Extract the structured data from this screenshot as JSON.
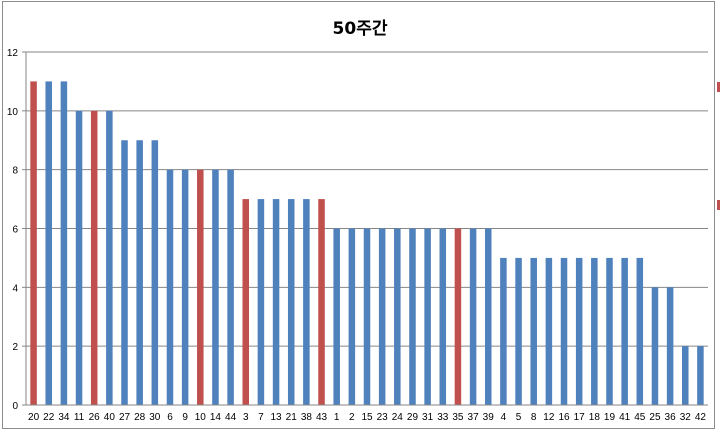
{
  "chart_data": {
    "type": "bar",
    "title": "50주간",
    "xlabel": "",
    "ylabel": "",
    "ylim": [
      0,
      12
    ],
    "yticks": [
      0,
      2,
      4,
      6,
      8,
      10,
      12
    ],
    "grid": true,
    "legend": "none",
    "categories": [
      "20",
      "22",
      "34",
      "11",
      "26",
      "40",
      "27",
      "28",
      "30",
      "6",
      "9",
      "10",
      "14",
      "44",
      "3",
      "7",
      "13",
      "21",
      "38",
      "43",
      "1",
      "2",
      "15",
      "23",
      "24",
      "29",
      "31",
      "33",
      "35",
      "37",
      "39",
      "4",
      "5",
      "8",
      "12",
      "16",
      "17",
      "18",
      "19",
      "41",
      "45",
      "25",
      "36",
      "32",
      "42"
    ],
    "values": [
      11,
      11,
      11,
      10,
      10,
      10,
      9,
      9,
      9,
      8,
      8,
      8,
      8,
      8,
      7,
      7,
      7,
      7,
      7,
      7,
      6,
      6,
      6,
      6,
      6,
      6,
      6,
      6,
      6,
      6,
      6,
      5,
      5,
      5,
      5,
      5,
      5,
      5,
      5,
      5,
      5,
      4,
      4,
      2,
      2
    ],
    "highlighted": [
      "20",
      "26",
      "10",
      "3",
      "43",
      "35"
    ],
    "colors": {
      "default": "#4f81bd",
      "highlight": "#c0504d",
      "grid": "#868686"
    }
  }
}
